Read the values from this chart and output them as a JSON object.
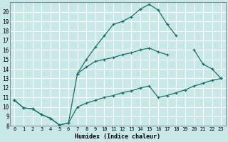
{
  "xlabel": "Humidex (Indice chaleur)",
  "bg_color": "#c8e8e8",
  "grid_color": "#ffffff",
  "line_color": "#1a7068",
  "xlim": [
    -0.5,
    23.5
  ],
  "ylim": [
    8,
    21
  ],
  "xticks": [
    0,
    1,
    2,
    3,
    4,
    5,
    6,
    7,
    8,
    9,
    10,
    11,
    12,
    13,
    14,
    15,
    16,
    17,
    18,
    19,
    20,
    21,
    22,
    23
  ],
  "yticks": [
    8,
    9,
    10,
    11,
    12,
    13,
    14,
    15,
    16,
    17,
    18,
    19,
    20
  ],
  "line1_x": [
    0,
    1,
    2,
    3,
    4,
    5,
    6,
    7,
    8,
    9,
    10,
    11,
    12,
    13,
    14,
    15,
    16,
    17,
    18,
    19,
    20,
    21,
    22,
    23
  ],
  "line1_y": [
    10.7,
    9.9,
    9.8,
    9.2,
    8.8,
    8.1,
    8.3,
    10.0,
    10.4,
    10.7,
    11.0,
    11.2,
    11.5,
    11.7,
    12.0,
    12.2,
    11.0,
    11.2,
    11.5,
    11.8,
    12.2,
    12.5,
    12.8,
    13.0
  ],
  "line2_x": [
    0,
    1,
    2,
    3,
    4,
    5,
    6,
    7,
    8,
    9,
    10,
    11,
    12,
    13,
    14,
    15,
    16,
    17,
    18,
    19,
    20,
    21,
    22,
    23
  ],
  "line2_y": [
    10.7,
    9.9,
    9.8,
    9.2,
    8.8,
    8.1,
    8.3,
    13.5,
    15.0,
    16.3,
    17.5,
    18.7,
    19.0,
    19.5,
    20.3,
    20.8,
    20.2,
    18.7,
    17.5,
    null,
    null,
    null,
    null,
    null
  ],
  "line3_x": [
    0,
    1,
    2,
    3,
    4,
    5,
    6,
    7,
    8,
    9,
    10,
    11,
    12,
    13,
    14,
    15,
    16,
    17,
    18,
    19,
    20,
    21,
    22,
    23
  ],
  "line3_y": [
    10.7,
    null,
    null,
    null,
    null,
    null,
    null,
    13.5,
    14.2,
    14.8,
    15.0,
    15.2,
    15.5,
    15.7,
    16.0,
    16.2,
    15.8,
    15.5,
    null,
    null,
    16.0,
    14.5,
    14.0,
    13.0
  ]
}
